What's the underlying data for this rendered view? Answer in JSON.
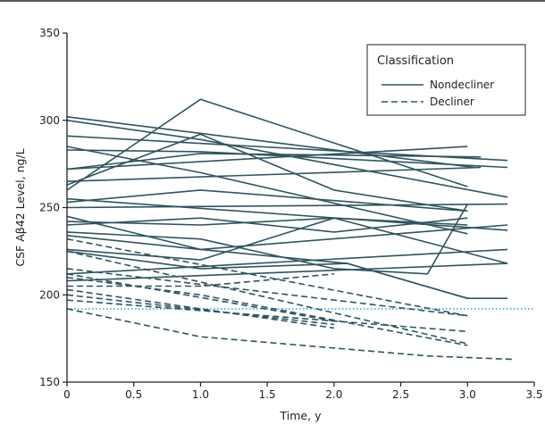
{
  "chart_data": {
    "type": "line",
    "title": "",
    "xlabel": "Time, y",
    "ylabel": "CSF Aβ42 Level, ng/L",
    "xlim": [
      0,
      3.5
    ],
    "ylim": [
      150,
      350
    ],
    "xticks": [
      "0",
      "0.5",
      "1.0",
      "1.5",
      "2.0",
      "2.5",
      "3.0",
      "3.5"
    ],
    "xtick_values": [
      0,
      0.5,
      1,
      1.5,
      2,
      2.5,
      3,
      3.5
    ],
    "yticks": [
      "150",
      "200",
      "250",
      "300",
      "350"
    ],
    "ytick_values": [
      150,
      200,
      250,
      300,
      350
    ],
    "grid": false,
    "legend": {
      "title": "Classification",
      "placement": "top-right",
      "entries": [
        {
          "label": "Nondecliner",
          "style": "solid"
        },
        {
          "label": "Decliner",
          "style": "dashed"
        }
      ]
    },
    "reference_line": {
      "y": 192,
      "color": "#33aadd",
      "style": "dotted"
    },
    "line_color": "#2e5560",
    "series": [
      {
        "group": "Nondecliner",
        "x": [
          0,
          3.05
        ],
        "y": [
          302,
          273
        ]
      },
      {
        "group": "Nondecliner",
        "x": [
          0,
          1.0,
          3.3
        ],
        "y": [
          300,
          289,
          256
        ]
      },
      {
        "group": "Nondecliner",
        "x": [
          0,
          3.3
        ],
        "y": [
          291,
          277
        ]
      },
      {
        "group": "Nondecliner",
        "x": [
          0,
          1.0,
          3.0
        ],
        "y": [
          285,
          270,
          235
        ]
      },
      {
        "group": "Nondecliner",
        "x": [
          0,
          1.0,
          3.3
        ],
        "y": [
          283,
          282,
          273
        ]
      },
      {
        "group": "Nondecliner",
        "x": [
          0,
          1.0,
          3.1
        ],
        "y": [
          272,
          281,
          279
        ]
      },
      {
        "group": "Nondecliner",
        "x": [
          0,
          3.0
        ],
        "y": [
          272,
          285
        ]
      },
      {
        "group": "Nondecliner",
        "x": [
          0,
          3.1
        ],
        "y": [
          265,
          273
        ]
      },
      {
        "group": "Nondecliner",
        "x": [
          0,
          1.0,
          2.0,
          3.0
        ],
        "y": [
          263,
          292,
          260,
          248
        ]
      },
      {
        "group": "Nondecliner",
        "x": [
          0,
          1.0,
          3.0
        ],
        "y": [
          260,
          312,
          262
        ]
      },
      {
        "group": "Nondecliner",
        "x": [
          0,
          3.3
        ],
        "y": [
          255,
          237
        ]
      },
      {
        "group": "Nondecliner",
        "x": [
          0,
          1.0,
          3.0
        ],
        "y": [
          253,
          260,
          248
        ]
      },
      {
        "group": "Nondecliner",
        "x": [
          0,
          3.3
        ],
        "y": [
          250,
          252
        ]
      },
      {
        "group": "Nondecliner",
        "x": [
          0,
          1.0,
          3.3
        ],
        "y": [
          245,
          226,
          240
        ]
      },
      {
        "group": "Nondecliner",
        "x": [
          0,
          1.0,
          2.0,
          3.0
        ],
        "y": [
          242,
          240,
          244,
          240
        ]
      },
      {
        "group": "Nondecliner",
        "x": [
          0,
          1.0,
          2.0,
          3.0
        ],
        "y": [
          240,
          244,
          236,
          244
        ]
      },
      {
        "group": "Nondecliner",
        "x": [
          0,
          1.0,
          2.0,
          2.7,
          3.0
        ],
        "y": [
          236,
          232,
          215,
          212,
          252
        ]
      },
      {
        "group": "Nondecliner",
        "x": [
          0,
          1.0,
          2.1,
          3.0
        ],
        "y": [
          234,
          226,
          218,
          198
        ]
      },
      {
        "group": "Nondecliner",
        "x": [
          0,
          1.0,
          2.0,
          3.3
        ],
        "y": [
          226,
          220,
          244,
          218
        ]
      },
      {
        "group": "Nondecliner",
        "x": [
          0,
          3.3
        ],
        "y": [
          212,
          226
        ]
      },
      {
        "group": "Nondecliner",
        "x": [
          0,
          3.3
        ],
        "y": [
          208,
          218
        ]
      },
      {
        "group": "Nondecliner",
        "x": [
          0,
          1.0,
          2.1,
          3.0,
          3.3
        ],
        "y": [
          225,
          215,
          218,
          198,
          198
        ]
      },
      {
        "group": "Decliner",
        "x": [
          0,
          3.0
        ],
        "y": [
          232,
          188
        ]
      },
      {
        "group": "Decliner",
        "x": [
          0,
          3.0
        ],
        "y": [
          225,
          172
        ]
      },
      {
        "group": "Decliner",
        "x": [
          0,
          3.0
        ],
        "y": [
          215,
          188
        ]
      },
      {
        "group": "Decliner",
        "x": [
          0,
          2.0
        ],
        "y": [
          212,
          185
        ]
      },
      {
        "group": "Decliner",
        "x": [
          0,
          1.0,
          3.0
        ],
        "y": [
          210,
          200,
          171
        ]
      },
      {
        "group": "Decliner",
        "x": [
          0,
          1.0,
          2.0
        ],
        "y": [
          205,
          205,
          212
        ]
      },
      {
        "group": "Decliner",
        "x": [
          0,
          2.0
        ],
        "y": [
          203,
          181
        ]
      },
      {
        "group": "Decliner",
        "x": [
          0,
          2.0
        ],
        "y": [
          200,
          183
        ]
      },
      {
        "group": "Decliner",
        "x": [
          0,
          3.0
        ],
        "y": [
          197,
          179
        ]
      },
      {
        "group": "Decliner",
        "x": [
          0,
          1.0,
          2.7,
          3.35
        ],
        "y": [
          192,
          176,
          165,
          163
        ]
      }
    ]
  }
}
